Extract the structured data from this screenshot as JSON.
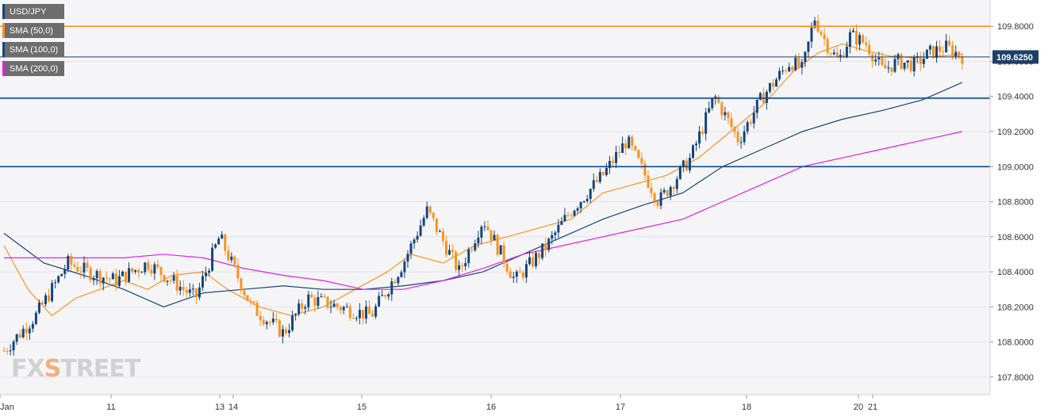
{
  "legend": [
    {
      "label": "USD/JPY",
      "color": "#16457a"
    },
    {
      "label": "SMA (50,0)",
      "color": "#f7931e"
    },
    {
      "label": "SMA (100,0)",
      "color": "#16457a"
    },
    {
      "label": "SMA (200,0)",
      "color": "#e020e0"
    }
  ],
  "logo": {
    "brand": "FXSTREET"
  },
  "price_badge": {
    "value": "109.6250",
    "color": "#1c3f66"
  },
  "chart_data": {
    "type": "line",
    "title": "",
    "xlabel": "",
    "ylabel": "",
    "ylim": [
      107.7,
      109.95
    ],
    "y_ticks": [
      "107.8000",
      "108.0000",
      "108.2000",
      "108.4000",
      "108.6000",
      "108.8000",
      "109.0000",
      "109.2000",
      "109.4000",
      "109.6000",
      "109.8000"
    ],
    "x_ticks": [
      "Jan",
      "11",
      "13",
      "14",
      "15",
      "16",
      "17",
      "18",
      "20",
      "21"
    ],
    "grid": true,
    "legend_position": "top-left",
    "current_price": 109.625,
    "horizontal_levels": [
      {
        "value": 109.8,
        "color": "#f7931e"
      },
      {
        "value": 109.625,
        "color": "#1c3f66"
      },
      {
        "value": 109.39,
        "color": "#0b4a8f"
      },
      {
        "value": 109.0,
        "color": "#0b4a8f"
      }
    ],
    "price_series": {
      "name": "USD/JPY",
      "x": [
        0,
        0.4,
        0.8,
        1.05,
        1.4,
        1.8,
        2.4,
        2.7,
        3.1,
        3.5,
        3.8,
        4.2,
        4.6,
        5.0,
        5.3,
        5.7,
        6.0,
        6.4,
        6.8,
        7.1,
        7.5,
        7.8,
        8.2,
        8.6,
        8.9,
        9.2,
        9.5,
        9.85
      ],
      "y": [
        107.95,
        108.15,
        108.45,
        108.4,
        108.35,
        108.45,
        108.25,
        108.6,
        108.2,
        108.05,
        108.25,
        108.2,
        108.15,
        108.45,
        108.75,
        108.4,
        108.7,
        108.35,
        108.55,
        108.75,
        108.95,
        109.15,
        108.8,
        109.05,
        109.4,
        109.15,
        109.4,
        109.6
      ],
      "x2": [
        10.0,
        10.15,
        10.3,
        10.45,
        10.6,
        10.8,
        11.0,
        11.2,
        11.4,
        11.6,
        11.8,
        12.0
      ],
      "y2": [
        109.55,
        109.85,
        109.7,
        109.6,
        109.75,
        109.7,
        109.55,
        109.6,
        109.58,
        109.65,
        109.68,
        109.63
      ]
    },
    "series": [
      {
        "name": "SMA (50,0)",
        "color": "#f7931e",
        "x": [
          0,
          0.3,
          0.6,
          0.9,
          1.2,
          1.5,
          1.8,
          2.1,
          2.5,
          2.8,
          3.2,
          3.6,
          4.0,
          4.4,
          4.8,
          5.1,
          5.5,
          5.9,
          6.3,
          6.7,
          7.1,
          7.5,
          7.9,
          8.3,
          8.7,
          9.1,
          9.5,
          9.9,
          10.2,
          10.5,
          10.8,
          11.1,
          11.4,
          11.7,
          12.0
        ],
        "values": [
          108.55,
          108.3,
          108.15,
          108.25,
          108.3,
          108.35,
          108.3,
          108.38,
          108.4,
          108.3,
          108.2,
          108.15,
          108.2,
          108.3,
          108.4,
          108.5,
          108.45,
          108.55,
          108.6,
          108.65,
          108.7,
          108.85,
          108.9,
          108.95,
          109.05,
          109.2,
          109.35,
          109.55,
          109.65,
          109.7,
          109.66,
          109.63,
          109.62,
          109.63,
          109.64
        ]
      },
      {
        "name": "SMA (100,0)",
        "color": "#16457a",
        "x": [
          0,
          0.5,
          1.0,
          1.5,
          2.0,
          2.5,
          3.0,
          3.5,
          4.0,
          4.5,
          5.0,
          5.5,
          6.0,
          6.5,
          7.0,
          7.5,
          8.0,
          8.5,
          9.0,
          9.5,
          10.0,
          10.5,
          11.0,
          11.5,
          12.0
        ],
        "values": [
          108.62,
          108.45,
          108.38,
          108.3,
          108.2,
          108.28,
          108.3,
          108.32,
          108.3,
          108.3,
          108.32,
          108.35,
          108.4,
          108.5,
          108.6,
          108.7,
          108.78,
          108.85,
          109.0,
          109.1,
          109.2,
          109.27,
          109.32,
          109.38,
          109.48
        ]
      },
      {
        "name": "SMA (200,0)",
        "color": "#e020e0",
        "x": [
          0,
          0.5,
          1.0,
          1.5,
          2.0,
          2.5,
          3.0,
          3.5,
          4.0,
          4.5,
          5.0,
          5.5,
          6.0,
          6.5,
          7.0,
          7.5,
          8.0,
          8.5,
          9.0,
          9.5,
          10.0,
          10.5,
          11.0,
          11.5,
          12.0
        ],
        "values": [
          108.48,
          108.48,
          108.48,
          108.48,
          108.5,
          108.48,
          108.42,
          108.38,
          108.35,
          108.3,
          108.3,
          108.35,
          108.42,
          108.5,
          108.55,
          108.6,
          108.65,
          108.7,
          108.8,
          108.9,
          109.0,
          109.05,
          109.1,
          109.15,
          109.2
        ]
      }
    ]
  }
}
